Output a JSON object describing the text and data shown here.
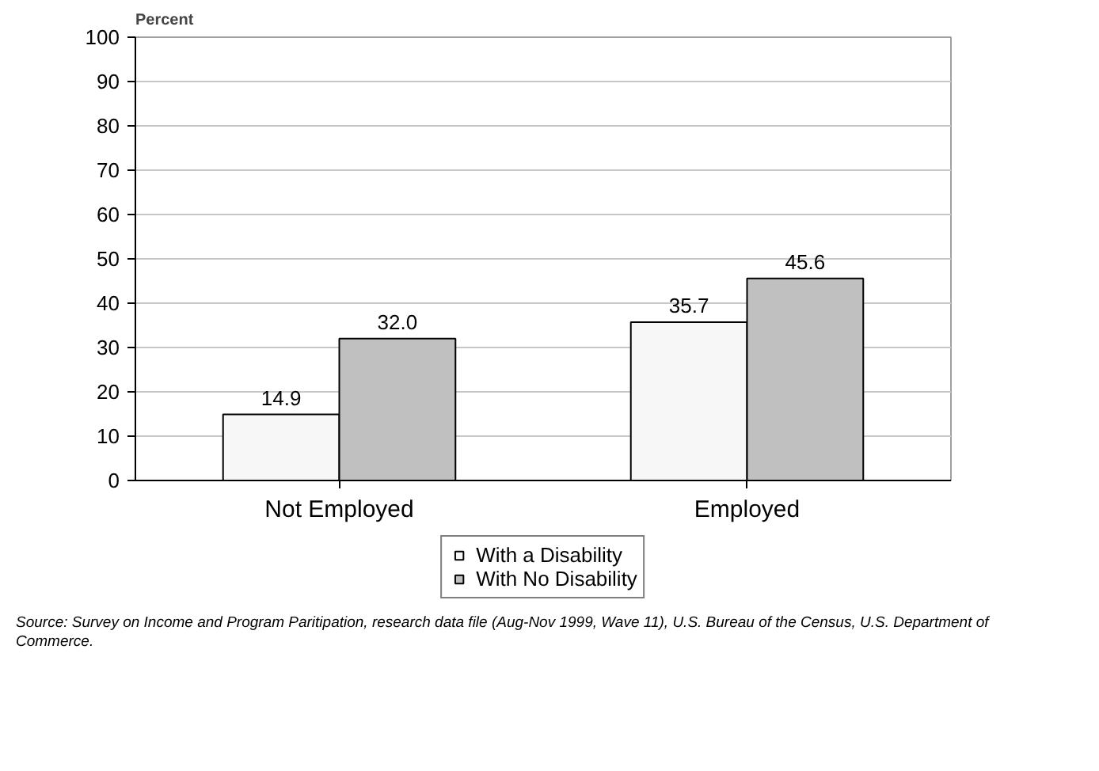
{
  "chart_data": {
    "type": "bar",
    "ylabel": "Percent",
    "categories": [
      "Not Employed",
      "Employed"
    ],
    "series": [
      {
        "name": "With a Disability",
        "color": "#f7f7f7",
        "values": [
          14.9,
          35.7
        ],
        "value_labels": [
          "14.9",
          "35.7"
        ]
      },
      {
        "name": "With No Disability",
        "color": "#c0c0c0",
        "values": [
          32.0,
          45.6
        ],
        "value_labels": [
          "32.0",
          "45.6"
        ]
      }
    ],
    "data_labels": true,
    "ylim": [
      0,
      100
    ],
    "yticks": [
      0,
      10,
      20,
      30,
      40,
      50,
      60,
      70,
      80,
      90,
      100
    ],
    "grid": "y",
    "legend": "bottom",
    "annotations": [
      "Source: Survey on Income and Program Paritipation, research data file (Aug-Nov 1999, Wave 11),  U.S. Bureau of the Census, U.S. Department of Commerce."
    ]
  }
}
